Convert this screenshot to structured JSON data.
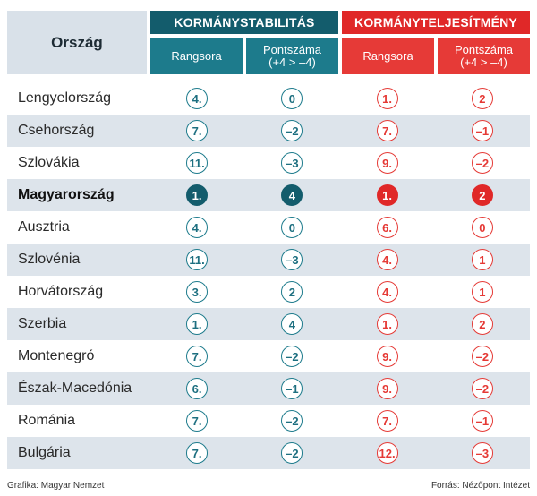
{
  "header": {
    "country_col": "Ország",
    "stability_title": "KORMÁNYSTABILITÁS",
    "performance_title": "KORMÁNYTELJESÍTMÉNY",
    "rank_label": "Rangsora",
    "score_label_line1": "Pontszáma",
    "score_label_line2": "(+4 > –4)"
  },
  "colors": {
    "teal_dark": "#135c6c",
    "teal": "#1d7b8c",
    "red": "#e02828",
    "row_alt": "#dde4eb"
  },
  "rows": [
    {
      "country": "Lengyelország",
      "stab_rank": "4.",
      "stab_score": "0",
      "perf_rank": "1.",
      "perf_score": "2"
    },
    {
      "country": "Csehország",
      "stab_rank": "7.",
      "stab_score": "–2",
      "perf_rank": "7.",
      "perf_score": "–1"
    },
    {
      "country": "Szlovákia",
      "stab_rank": "11.",
      "stab_score": "–3",
      "perf_rank": "9.",
      "perf_score": "–2"
    },
    {
      "country": "Magyarország",
      "stab_rank": "1.",
      "stab_score": "4",
      "perf_rank": "1.",
      "perf_score": "2"
    },
    {
      "country": "Ausztria",
      "stab_rank": "4.",
      "stab_score": "0",
      "perf_rank": "6.",
      "perf_score": "0"
    },
    {
      "country": "Szlovénia",
      "stab_rank": "11.",
      "stab_score": "–3",
      "perf_rank": "4.",
      "perf_score": "1"
    },
    {
      "country": "Horvátország",
      "stab_rank": "3.",
      "stab_score": "2",
      "perf_rank": "4.",
      "perf_score": "1"
    },
    {
      "country": "Szerbia",
      "stab_rank": "1.",
      "stab_score": "4",
      "perf_rank": "1.",
      "perf_score": "2"
    },
    {
      "country": "Montenegró",
      "stab_rank": "7.",
      "stab_score": "–2",
      "perf_rank": "9.",
      "perf_score": "–2"
    },
    {
      "country": "Észak-Macedónia",
      "stab_rank": "6.",
      "stab_score": "–1",
      "perf_rank": "9.",
      "perf_score": "–2"
    },
    {
      "country": "Románia",
      "stab_rank": "7.",
      "stab_score": "–2",
      "perf_rank": "7.",
      "perf_score": "–1"
    },
    {
      "country": "Bulgária",
      "stab_rank": "7.",
      "stab_score": "–2",
      "perf_rank": "12.",
      "perf_score": "–3"
    }
  ],
  "footer": {
    "credit": "Grafika: Magyar Nemzet",
    "source": "Forrás: Nézőpont Intézet"
  }
}
